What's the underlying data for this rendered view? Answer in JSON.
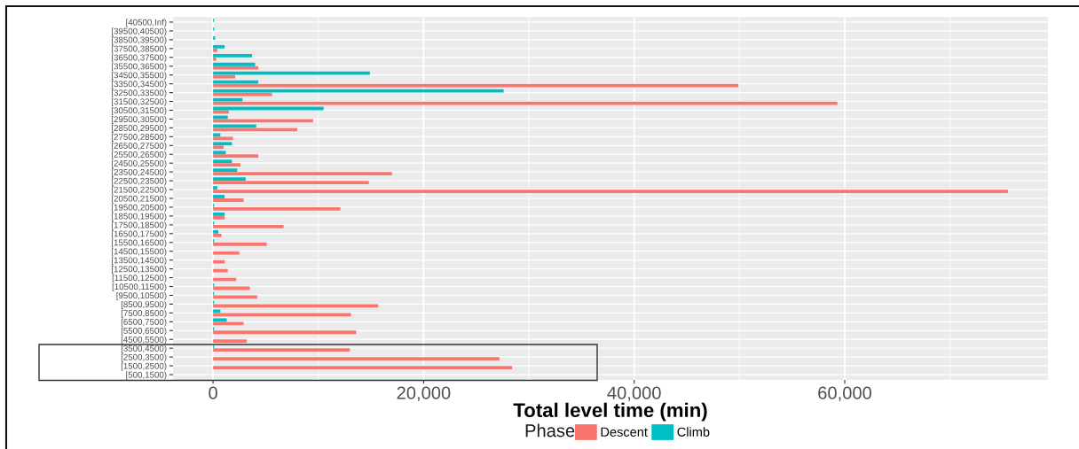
{
  "chart_data": {
    "type": "bar",
    "orientation": "horizontal",
    "categories": [
      "[40500,Inf)",
      "[39500,40500)",
      "[38500,39500)",
      "[37500,38500)",
      "[36500,37500)",
      "[35500,36500)",
      "[34500,35500)",
      "[33500,34500)",
      "[32500,33500)",
      "[31500,32500)",
      "[30500,31500)",
      "[29500,30500)",
      "[28500,29500)",
      "[27500,28500)",
      "[26500,27500)",
      "[25500,26500)",
      "[24500,25500)",
      "[23500,24500)",
      "[22500,23500)",
      "[21500,22500)",
      "[20500,21500)",
      "[19500,20500)",
      "[18500,19500)",
      "[17500,18500)",
      "[16500,17500)",
      "[15500,16500)",
      "[14500,15500)",
      "[13500,14500)",
      "[12500,13500)",
      "[11500,12500)",
      "[10500,11500)",
      "[9500,10500)",
      "[8500,9500)",
      "[7500,8500)",
      "[6500,7500)",
      "[5500,6500)",
      "[4500,5500)",
      "[3500,4500)",
      "[2500,3500)",
      "[1500,2500)",
      "[500,1500)"
    ],
    "series": [
      {
        "name": "Descent",
        "color": "#f8766d",
        "values": [
          0,
          0,
          0,
          400,
          300,
          4300,
          2100,
          49900,
          5600,
          59300,
          1500,
          9500,
          8000,
          1900,
          1000,
          4300,
          2600,
          17000,
          14800,
          75500,
          2900,
          12100,
          1100,
          6700,
          800,
          5100,
          2500,
          1100,
          1400,
          2200,
          3500,
          4200,
          15700,
          13100,
          2900,
          13600,
          3200,
          13000,
          27200,
          28400,
          0
        ]
      },
      {
        "name": "Climb",
        "color": "#00bfc4",
        "values": [
          100,
          100,
          200,
          1100,
          3700,
          4000,
          14900,
          4300,
          27600,
          2800,
          10500,
          1400,
          4100,
          700,
          1800,
          1200,
          1800,
          2300,
          3100,
          400,
          1100,
          100,
          1100,
          100,
          500,
          100,
          0,
          0,
          0,
          0,
          100,
          100,
          100,
          700,
          1300,
          100,
          0,
          100,
          0,
          0,
          0
        ]
      }
    ],
    "xlabel": "Total level time (min)",
    "legend_title": "Phase",
    "legend": "bottom",
    "xlim": [
      -3800,
      79300
    ],
    "xticks": [
      0,
      {
        "value": 20000,
        "label": "20,000"
      },
      {
        "value": 40000,
        "label": "40,000"
      },
      {
        "value": 60000,
        "label": "60,000"
      }
    ],
    "grid": true
  }
}
